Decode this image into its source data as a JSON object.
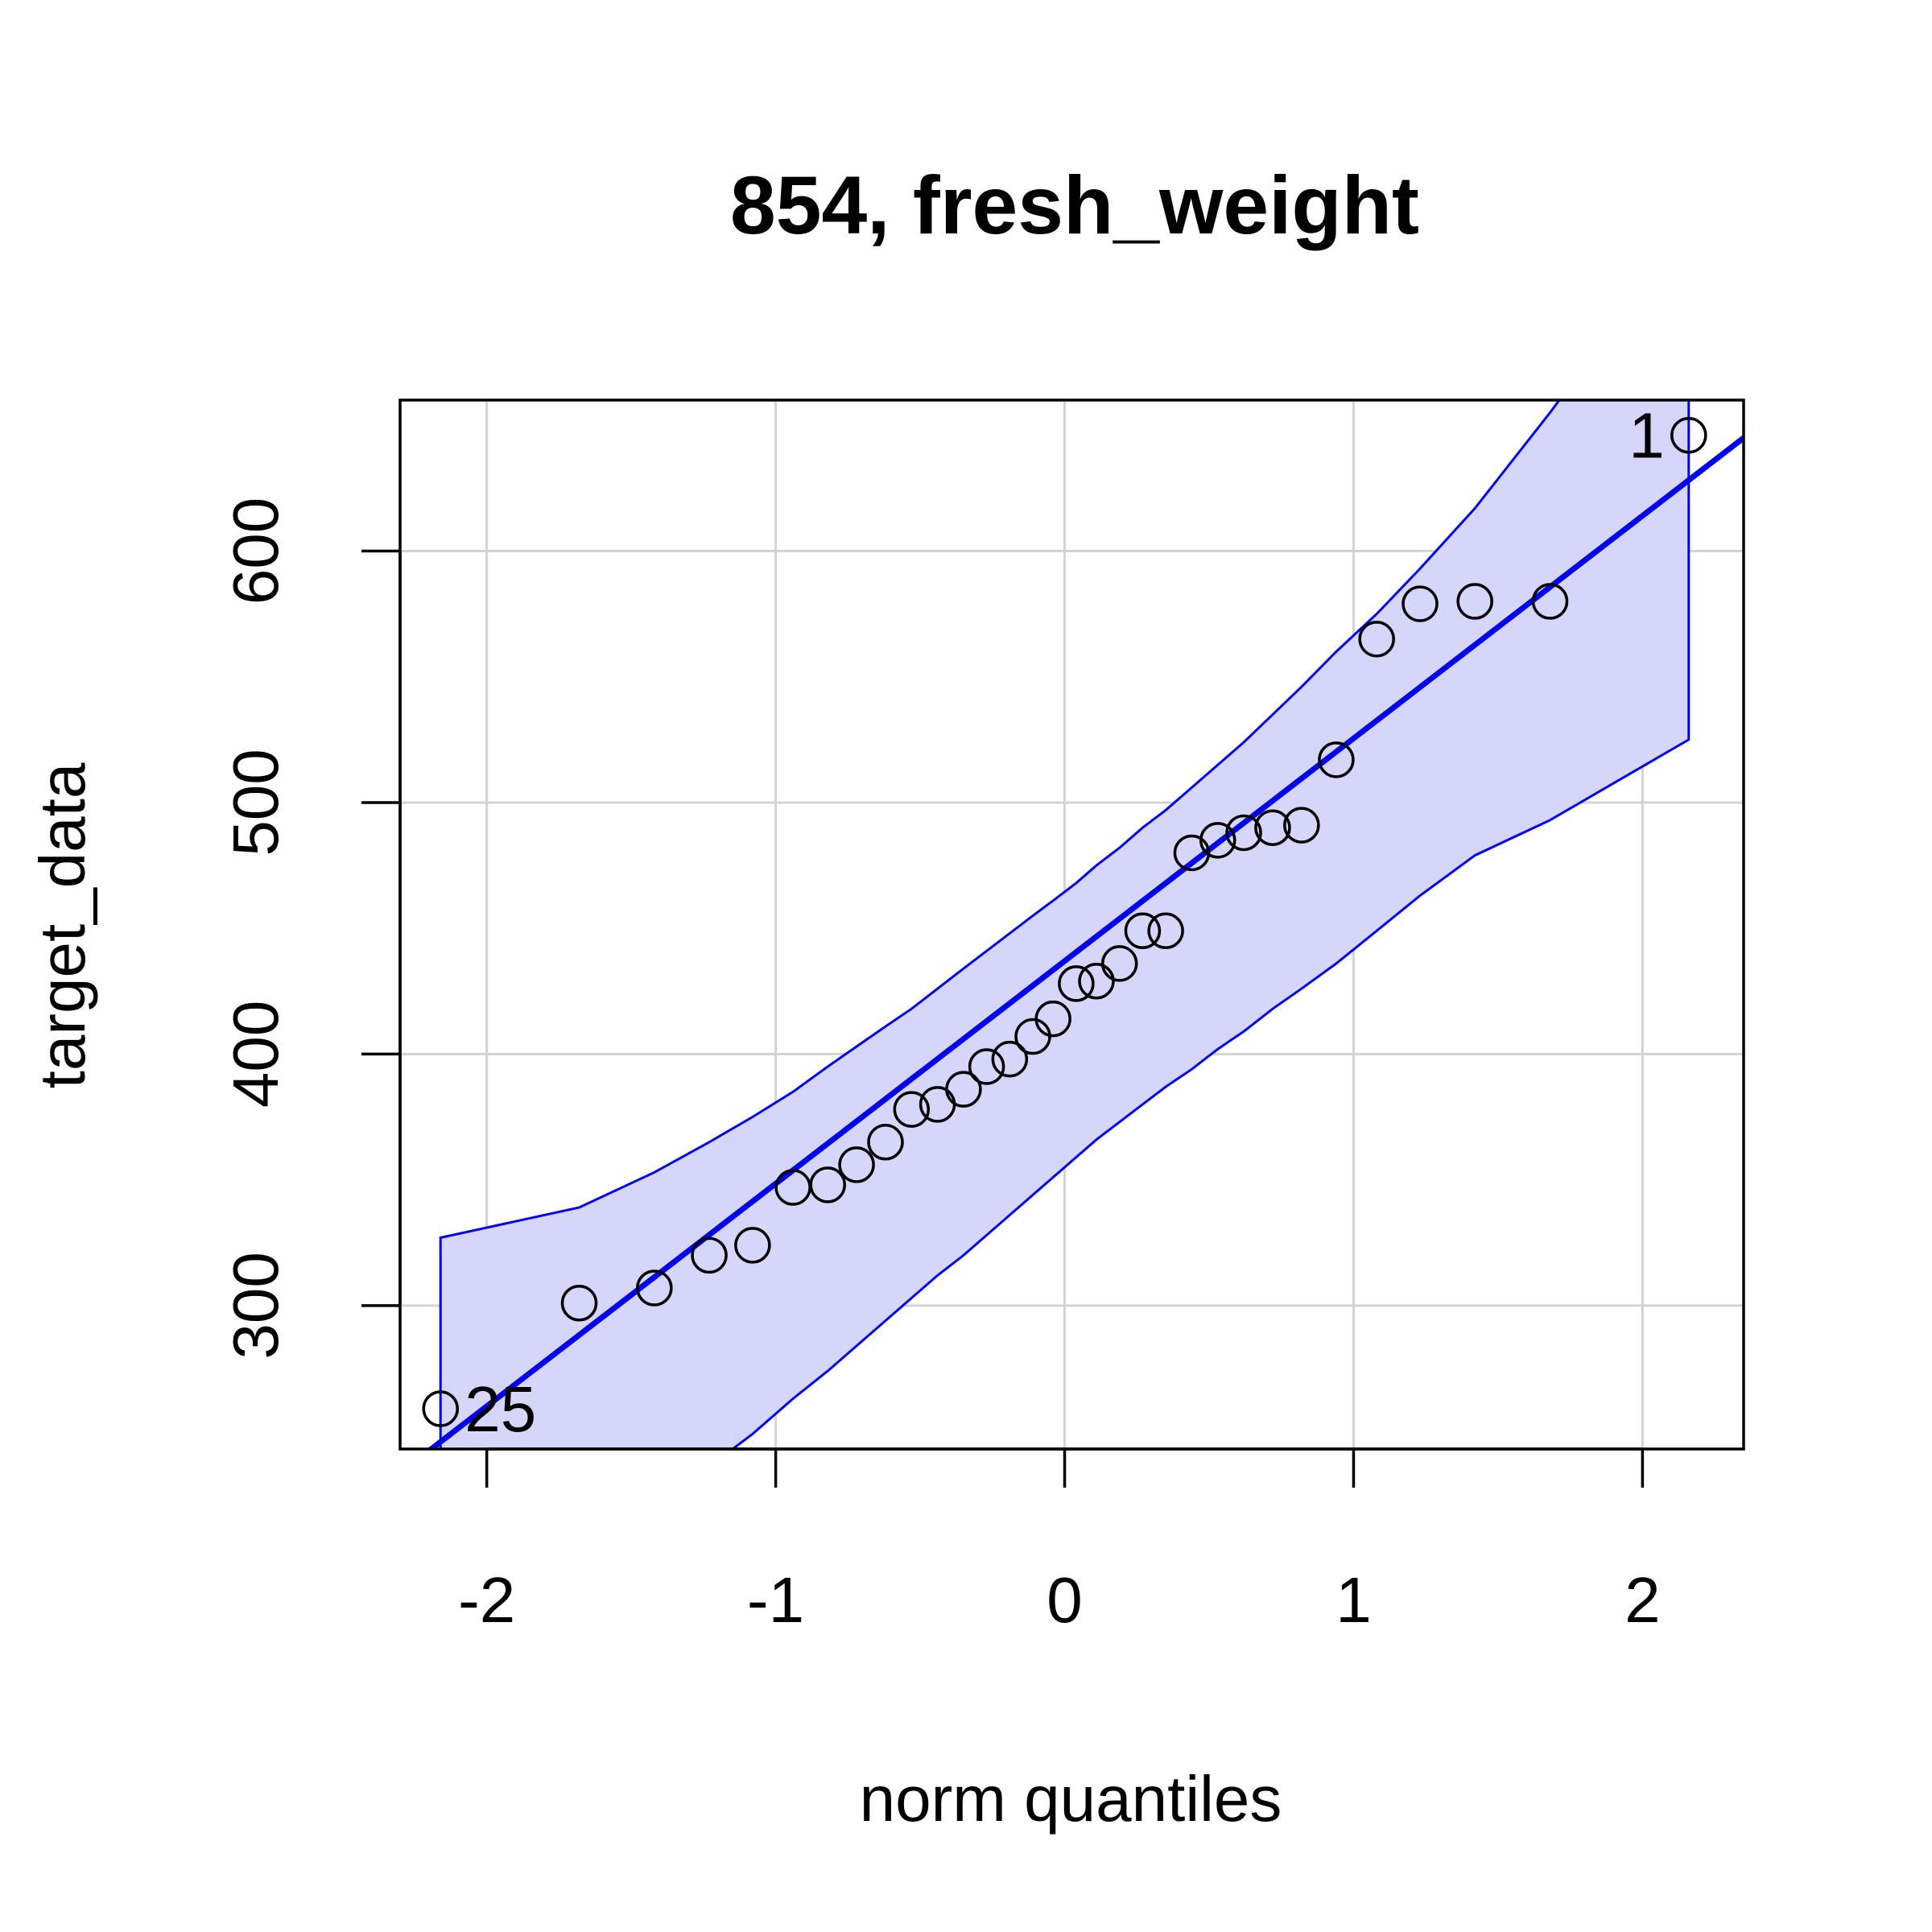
{
  "chart_data": {
    "type": "scatter",
    "title": "854, fresh_weight",
    "xlabel": "norm quantiles",
    "ylabel": "target_data",
    "xlim": [
      -2.3,
      2.35
    ],
    "ylim": [
      243,
      660
    ],
    "xticks": [
      -2,
      -1,
      0,
      1,
      2
    ],
    "yticks": [
      300,
      400,
      500,
      600
    ],
    "grid": true,
    "colors": {
      "points": "#000000",
      "line": "#0000ee",
      "band_fill": "#d6d6fb",
      "band_edge": "#0000ee",
      "grid": "#d3d3d3"
    },
    "points": [
      {
        "x": -2.16,
        "y": 259
      },
      {
        "x": -1.68,
        "y": 301
      },
      {
        "x": -1.42,
        "y": 307
      },
      {
        "x": -1.23,
        "y": 320
      },
      {
        "x": -1.08,
        "y": 324
      },
      {
        "x": -0.94,
        "y": 347
      },
      {
        "x": -0.82,
        "y": 348
      },
      {
        "x": -0.72,
        "y": 356
      },
      {
        "x": -0.62,
        "y": 365
      },
      {
        "x": -0.53,
        "y": 378
      },
      {
        "x": -0.44,
        "y": 380
      },
      {
        "x": -0.35,
        "y": 386
      },
      {
        "x": -0.27,
        "y": 395
      },
      {
        "x": -0.19,
        "y": 398
      },
      {
        "x": -0.11,
        "y": 407
      },
      {
        "x": -0.04,
        "y": 414
      },
      {
        "x": 0.04,
        "y": 428
      },
      {
        "x": 0.11,
        "y": 429
      },
      {
        "x": 0.19,
        "y": 436
      },
      {
        "x": 0.27,
        "y": 449
      },
      {
        "x": 0.35,
        "y": 449
      },
      {
        "x": 0.44,
        "y": 480
      },
      {
        "x": 0.53,
        "y": 485
      },
      {
        "x": 0.62,
        "y": 488
      },
      {
        "x": 0.72,
        "y": 490
      },
      {
        "x": 0.82,
        "y": 491
      },
      {
        "x": 0.94,
        "y": 517
      },
      {
        "x": 1.08,
        "y": 565
      },
      {
        "x": 1.23,
        "y": 579
      },
      {
        "x": 1.42,
        "y": 580
      },
      {
        "x": 1.68,
        "y": 580
      },
      {
        "x": 2.16,
        "y": 646
      }
    ],
    "point_labels": [
      {
        "text": "25",
        "x": -2.16,
        "y": 259,
        "side": "right"
      },
      {
        "text": "1",
        "x": 2.16,
        "y": 646,
        "side": "left"
      }
    ],
    "reference_line": {
      "intercept": 437,
      "slope": 88.5
    },
    "confidence_band": {
      "x": [
        -2.16,
        -1.68,
        -1.42,
        -1.23,
        -1.08,
        -0.94,
        -0.82,
        -0.72,
        -0.62,
        -0.53,
        -0.44,
        -0.35,
        -0.27,
        -0.19,
        -0.11,
        -0.04,
        0.04,
        0.11,
        0.19,
        0.27,
        0.35,
        0.44,
        0.53,
        0.62,
        0.72,
        0.82,
        0.94,
        1.08,
        1.23,
        1.42,
        1.68,
        2.16
      ],
      "upper": [
        327,
        339,
        353,
        365,
        375,
        385,
        395,
        403,
        411,
        418,
        426,
        434,
        441,
        448,
        455,
        461,
        468,
        475,
        482,
        490,
        497,
        506,
        515,
        524,
        535,
        546,
        560,
        575,
        593,
        617,
        655,
        730
      ],
      "lower": [
        158,
        199,
        219,
        236,
        249,
        263,
        274,
        284,
        294,
        303,
        312,
        320,
        328,
        336,
        344,
        351,
        359,
        366,
        373,
        380,
        387,
        394,
        402,
        409,
        418,
        426,
        436,
        449,
        463,
        479,
        493,
        525
      ]
    }
  }
}
